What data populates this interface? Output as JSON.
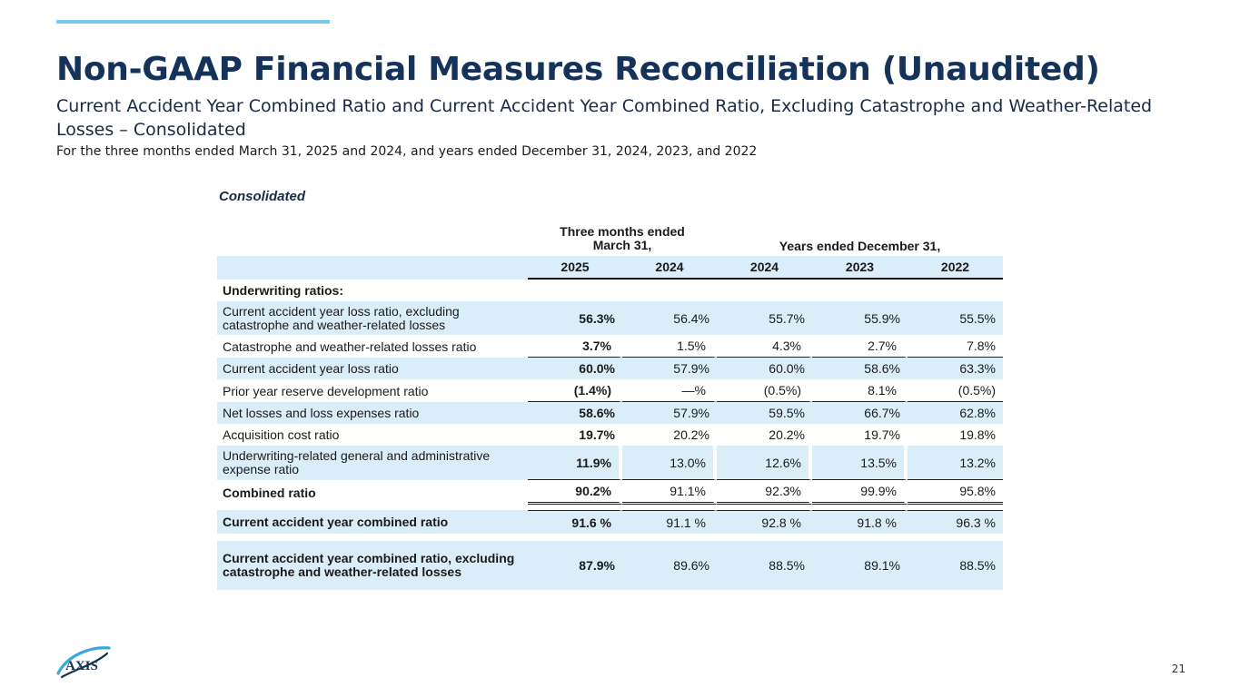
{
  "slide": {
    "title": "Non-GAAP Financial Measures Reconciliation (Unaudited)",
    "subtitle": "Current Accident Year Combined Ratio and Current Accident Year Combined Ratio, Excluding Catastrophe and Weather-Related Losses – Consolidated",
    "period": "For the three months ended March 31, 2025 and 2024, and years ended December 31, 2024, 2023, and 2022",
    "page_number": "21",
    "logo_text": "AXIS",
    "accent_color": "#7ec8ec",
    "title_color": "#14325a",
    "table_shade_color": "#daeefa"
  },
  "table": {
    "caption": "Consolidated",
    "group_headers": {
      "three_months": "Three months ended March 31,",
      "years": "Years ended December 31,"
    },
    "years": [
      "2025",
      "2024",
      "2024",
      "2023",
      "2022"
    ],
    "section_label": "Underwriting ratios:",
    "rows": [
      {
        "label": "Current accident year loss ratio, excluding catastrophe and weather-related losses",
        "values": [
          "56.3%",
          "56.4%",
          "55.7%",
          "55.9%",
          "55.5%"
        ]
      },
      {
        "label": "Catastrophe and weather-related losses ratio",
        "values": [
          "3.7%",
          "1.5%",
          "4.3%",
          "2.7%",
          "7.8%"
        ]
      },
      {
        "label": "Current accident year loss ratio",
        "values": [
          "60.0%",
          "57.9%",
          "60.0%",
          "58.6%",
          "63.3%"
        ]
      },
      {
        "label": "Prior year reserve development ratio",
        "values": [
          "(1.4%)",
          "—%",
          "(0.5%)",
          "8.1%",
          "(0.5%)"
        ]
      },
      {
        "label": "Net losses and loss expenses ratio",
        "values": [
          "58.6%",
          "57.9%",
          "59.5%",
          "66.7%",
          "62.8%"
        ]
      },
      {
        "label": "Acquisition cost ratio",
        "values": [
          "19.7%",
          "20.2%",
          "20.2%",
          "19.7%",
          "19.8%"
        ]
      },
      {
        "label": "Underwriting-related general and administrative expense ratio",
        "values": [
          "11.9%",
          "13.0%",
          "12.6%",
          "13.5%",
          "13.2%"
        ]
      },
      {
        "label": "Combined ratio",
        "values": [
          "90.2%",
          "91.1%",
          "92.3%",
          "99.9%",
          "95.8%"
        ]
      },
      {
        "label": "Current accident year combined ratio",
        "values": [
          "91.6 %",
          "91.1 %",
          "92.8 %",
          "91.8 %",
          "96.3 %"
        ]
      },
      {
        "label": "Current accident year combined ratio, excluding catastrophe and weather-related losses",
        "values": [
          "87.9%",
          "89.6%",
          "88.5%",
          "89.1%",
          "88.5%"
        ]
      }
    ]
  }
}
